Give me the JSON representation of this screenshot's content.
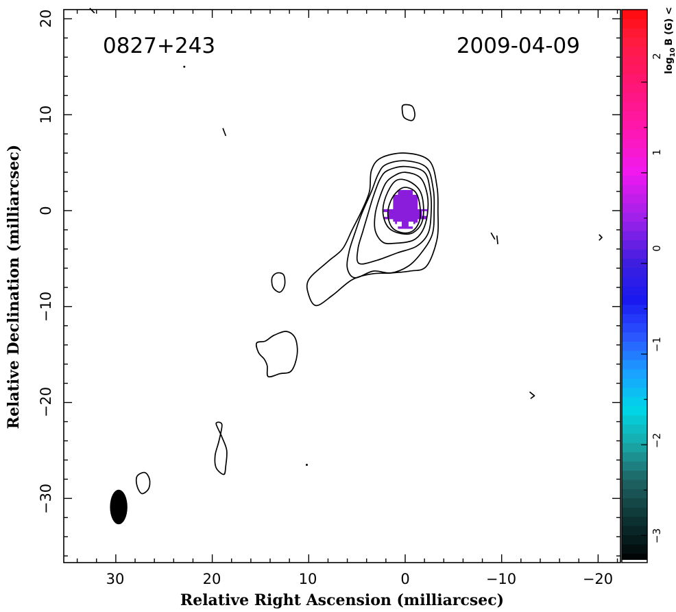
{
  "chart_data": {
    "type": "contour",
    "source_name": "0827+243",
    "epoch": "2009-04-09",
    "xlabel": "Relative Right Ascension (milliarcsec)",
    "ylabel": "Relative Declination (milliarcsec)",
    "xlim": [
      35,
      -22
    ],
    "ylim": [
      -36.5,
      21
    ],
    "x_ticks": [
      30,
      20,
      10,
      0,
      -10,
      -20
    ],
    "x_tick_labels": [
      "30",
      "20",
      "10",
      "0",
      "−10",
      "−20"
    ],
    "y_ticks": [
      20,
      10,
      0,
      -10,
      -20,
      -30
    ],
    "y_tick_labels": [
      "20",
      "10",
      "0",
      "−10",
      "−20",
      "−30"
    ],
    "beam": {
      "x": 29.7,
      "y": -30.9,
      "major_mas": 3.6,
      "minor_mas": 1.8,
      "pa_deg": 0
    },
    "core_contours": [
      {
        "level": 1,
        "points": [
          [
            2.5,
            5.5
          ],
          [
            0,
            6
          ],
          [
            -2.5,
            5.2
          ],
          [
            -3.3,
            2.5
          ],
          [
            -3.4,
            0
          ],
          [
            -3.3,
            -3
          ],
          [
            -2.2,
            -5.8
          ],
          [
            -0.5,
            -6.3
          ],
          [
            1.5,
            -6.5
          ],
          [
            3.5,
            -6.6
          ],
          [
            5.5,
            -7.2
          ],
          [
            7.5,
            -8.8
          ],
          [
            9.2,
            -9.9
          ],
          [
            10,
            -8.8
          ],
          [
            10,
            -7.2
          ],
          [
            8,
            -5.3
          ],
          [
            6.5,
            -4
          ],
          [
            5.5,
            -2
          ],
          [
            4.5,
            0
          ],
          [
            3.7,
            2
          ],
          [
            3.5,
            4.2
          ]
        ]
      },
      {
        "level": 2,
        "points": [
          [
            2,
            4.8
          ],
          [
            0,
            5.2
          ],
          [
            -2.2,
            4.5
          ],
          [
            -2.9,
            2.3
          ],
          [
            -3,
            0
          ],
          [
            -2.8,
            -2.5
          ],
          [
            -1.6,
            -4.5
          ],
          [
            -0.3,
            -5.8
          ],
          [
            1.5,
            -6.5
          ],
          [
            3.3,
            -6.3
          ],
          [
            5.2,
            -7
          ],
          [
            6,
            -6
          ],
          [
            5.8,
            -4.2
          ],
          [
            5.2,
            -2.3
          ],
          [
            4.5,
            -0.3
          ],
          [
            3.5,
            2
          ],
          [
            2.8,
            3.8
          ]
        ]
      },
      {
        "level": 3,
        "points": [
          [
            1.8,
            4.2
          ],
          [
            0,
            4.6
          ],
          [
            -2,
            4
          ],
          [
            -2.6,
            2
          ],
          [
            -2.7,
            0
          ],
          [
            -2.4,
            -2.3
          ],
          [
            -1.2,
            -3.7
          ],
          [
            0.8,
            -4.4
          ],
          [
            3,
            -5.2
          ],
          [
            4.8,
            -5.5
          ],
          [
            4.9,
            -4
          ],
          [
            4.4,
            -2.2
          ],
          [
            3.9,
            -0.5
          ],
          [
            3.3,
            1.5
          ],
          [
            2.6,
            3.3
          ]
        ]
      },
      {
        "level": 4,
        "points": [
          [
            1.2,
            3.6
          ],
          [
            0,
            4
          ],
          [
            -1.6,
            3.4
          ],
          [
            -2.3,
            1.6
          ],
          [
            -2.3,
            -0.4
          ],
          [
            -1.8,
            -2.1
          ],
          [
            -0.8,
            -3.1
          ],
          [
            1,
            -3.4
          ],
          [
            2.3,
            -3.3
          ],
          [
            3.1,
            -2.1
          ],
          [
            3.1,
            -0.3
          ],
          [
            2.6,
            1.5
          ],
          [
            2,
            2.9
          ]
        ]
      },
      {
        "level": 5,
        "points": [
          [
            1,
            3.1
          ],
          [
            -0.3,
            3.1
          ],
          [
            -1.5,
            2.1
          ],
          [
            -1.9,
            0.4
          ],
          [
            -1.7,
            -1.3
          ],
          [
            -0.8,
            -2.3
          ],
          [
            0.4,
            -2.4
          ],
          [
            1.7,
            -1.8
          ],
          [
            2.3,
            -0.3
          ],
          [
            2,
            1.5
          ]
        ]
      },
      {
        "level": 6,
        "points": [
          [
            0.2,
            2.4
          ],
          [
            -1,
            2
          ],
          [
            -1.5,
            0.7
          ],
          [
            -1.5,
            -1
          ],
          [
            -0.8,
            -2.1
          ],
          [
            0.3,
            -2.3
          ],
          [
            1.4,
            -1.7
          ],
          [
            1.8,
            -0.2
          ],
          [
            1.3,
            1.4
          ]
        ]
      }
    ],
    "jet_contours": [
      {
        "points": [
          [
            13.3,
            -6.5
          ],
          [
            12.6,
            -6.7
          ],
          [
            12.5,
            -7.8
          ],
          [
            13,
            -8.5
          ],
          [
            13.7,
            -8
          ],
          [
            13.8,
            -7
          ]
        ]
      },
      {
        "points": [
          [
            12.3,
            -12.6
          ],
          [
            11.4,
            -13.3
          ],
          [
            11.2,
            -15
          ],
          [
            11.8,
            -16.7
          ],
          [
            13,
            -17
          ],
          [
            14.2,
            -17.3
          ],
          [
            14.3,
            -16.2
          ],
          [
            14.6,
            -15.5
          ],
          [
            15.2,
            -14.8
          ],
          [
            15.4,
            -13.8
          ],
          [
            14.5,
            -13.6
          ],
          [
            13.6,
            -13
          ]
        ]
      },
      {
        "points": [
          [
            19.6,
            -22.2
          ],
          [
            19,
            -22.3
          ],
          [
            19.3,
            -24
          ],
          [
            19.7,
            -25.5
          ],
          [
            19.6,
            -26.8
          ],
          [
            18.8,
            -27.5
          ],
          [
            18.6,
            -26.6
          ],
          [
            18.5,
            -25
          ],
          [
            19,
            -23.6
          ]
        ]
      },
      {
        "points": [
          [
            27,
            -27.3
          ],
          [
            27.8,
            -27.7
          ],
          [
            27.8,
            -28.7
          ],
          [
            27.3,
            -29.5
          ],
          [
            26.6,
            -29
          ],
          [
            26.5,
            -28
          ]
        ]
      },
      {
        "points": [
          [
            0.2,
            11
          ],
          [
            -0.7,
            10.9
          ],
          [
            -1,
            10
          ],
          [
            -0.7,
            9.4
          ],
          [
            0.1,
            9.7
          ],
          [
            0.3,
            10.4
          ]
        ]
      }
    ],
    "small_features": [
      {
        "points": [
          [
            18.9,
            8.6
          ],
          [
            18.6,
            7.8
          ]
        ]
      },
      {
        "points": [
          [
            -8.9,
            -2.3
          ],
          [
            -9.3,
            -3
          ]
        ]
      },
      {
        "points": [
          [
            -9.5,
            -2.6
          ],
          [
            -9.6,
            -3.5
          ]
        ]
      },
      {
        "points": [
          [
            -12.9,
            -18.9
          ],
          [
            -13.4,
            -19.3
          ],
          [
            -13,
            -19.6
          ]
        ]
      },
      {
        "points": [
          [
            -20.1,
            -2.5
          ],
          [
            -20.4,
            -2.8
          ],
          [
            -20.1,
            -3.1
          ]
        ]
      },
      {
        "points": [
          [
            32.7,
            21.1
          ],
          [
            32.2,
            20.6
          ]
        ]
      },
      {
        "points": [
          [
            22.9,
            15
          ]
        ]
      },
      {
        "points": [
          [
            10.2,
            -26.5
          ]
        ]
      }
    ],
    "magnetic_field_pixels": {
      "color": "#8a1cdc",
      "cell_mas": [
        0.5,
        0.5
      ],
      "x_range": [
        2,
        -2.2
      ],
      "y_range": [
        -1.6,
        2.1
      ],
      "pixels": [
        [
          1.8,
          -1.7
        ],
        [
          1.3,
          -1.4
        ],
        [
          0.6,
          -1.4
        ],
        [
          -0.6,
          -1.4
        ],
        [
          -1.3,
          -1.5
        ],
        [
          -2,
          -0.3
        ],
        [
          2,
          -0.4
        ],
        [
          1.6,
          0.5
        ],
        [
          -1.6,
          0.5
        ]
      ]
    },
    "colorbar": {
      "label": "log",
      "label_sub": "10",
      "label_rest": "B (G) <",
      "colorbar_top_label": "2",
      "range": [
        -3.3,
        2.8
      ],
      "ticks": [
        2,
        1,
        0,
        -1,
        -2,
        -3
      ],
      "tick_labels": [
        "2",
        "1",
        "0",
        "−1",
        "−2",
        "−3"
      ],
      "stops": [
        [
          -3.3,
          "#000000"
        ],
        [
          -2.9,
          "#0a2a2a"
        ],
        [
          -2.4,
          "#1f6262"
        ],
        [
          -2.0,
          "#1aa7a7"
        ],
        [
          -1.6,
          "#00d7e8"
        ],
        [
          -1.2,
          "#1aa0ff"
        ],
        [
          -0.8,
          "#2b55ff"
        ],
        [
          -0.4,
          "#1a1af0"
        ],
        [
          0.0,
          "#3d1fe0"
        ],
        [
          0.5,
          "#9e21e9"
        ],
        [
          1.0,
          "#f019f0"
        ],
        [
          1.5,
          "#ff17ad"
        ],
        [
          2.0,
          "#ff1672"
        ],
        [
          2.5,
          "#ff1a3a"
        ],
        [
          2.8,
          "#ff0a0a"
        ]
      ]
    }
  }
}
